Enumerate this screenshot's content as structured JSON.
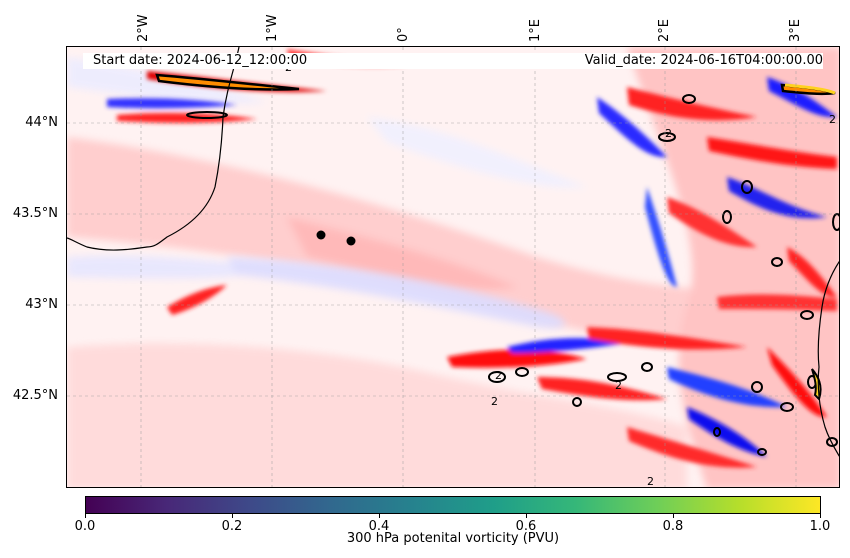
{
  "map": {
    "longitude_labels": [
      "2°W",
      "1°W",
      "0°",
      "1°E",
      "2°E",
      "3°E"
    ],
    "latitude_labels": [
      "44°N",
      "43.5°N",
      "43°N",
      "42.5°N"
    ],
    "start_date": "Start date: 2024-06-12_12:00:00",
    "valid_date": "Valid_date: 2024-06-16T04:00:00.00",
    "contour_label": "2",
    "colors": {
      "positive": "#ff0000",
      "negative": "#0000ff",
      "neutral": "#ffffff",
      "coastline": "#000000"
    }
  },
  "colorbar": {
    "ticks": [
      "0.0",
      "0.2",
      "0.4",
      "0.6",
      "0.8",
      "1.0"
    ],
    "label": "300 hPa potenital vorticity (PVU)",
    "colormap": "viridis",
    "range": [
      0.0,
      1.0
    ]
  }
}
